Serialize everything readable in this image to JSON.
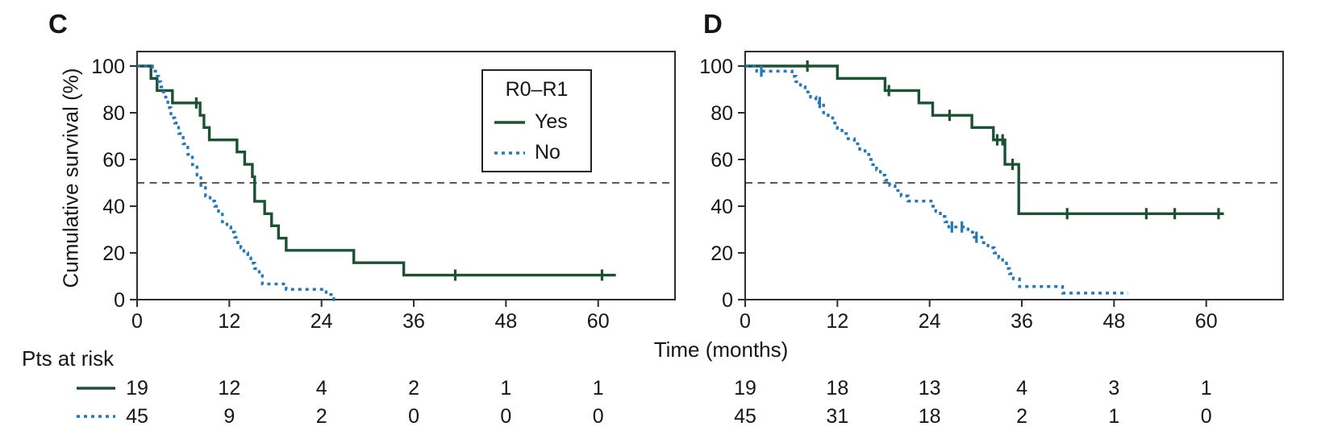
{
  "figure": {
    "ylabel": "Cumulative survival (%)",
    "xlabel": "Time (months)",
    "pts_at_risk_label": "Pts at risk"
  },
  "legend": {
    "title": "R0–R1",
    "entries": [
      {
        "label": "Yes",
        "style": "solid",
        "color": "#1d5134"
      },
      {
        "label": "No",
        "style": "dashed",
        "color": "#2577b5"
      }
    ],
    "position": "upper-right-of-panel-C"
  },
  "colors": {
    "yes_line": "#1d5134",
    "no_line": "#2577b5",
    "frame": "#2d2d2d",
    "text": "#161616",
    "reference_line": "#222222"
  },
  "chart_data": [
    {
      "type": "line",
      "title": "C",
      "xlabel": "Time (months)",
      "ylabel": "Cumulative survival (%)",
      "xlim": [
        0,
        70
      ],
      "ylim": [
        0,
        100
      ],
      "xticks": [
        0,
        12,
        24,
        36,
        48,
        60
      ],
      "yticks": [
        0,
        20,
        40,
        60,
        80,
        100
      ],
      "grid": false,
      "reference_line_y": 50,
      "series": [
        {
          "name": "Yes",
          "style": "solid",
          "color": "#1d5134",
          "steps": [
            [
              0,
              100
            ],
            [
              1.8,
              94.7
            ],
            [
              2.6,
              89.5
            ],
            [
              4.6,
              84.2
            ],
            [
              8.2,
              78.9
            ],
            [
              8.7,
              73.7
            ],
            [
              9.4,
              68.4
            ],
            [
              13.0,
              63.2
            ],
            [
              14.0,
              57.9
            ],
            [
              15.0,
              52.6
            ],
            [
              15.3,
              42.1
            ],
            [
              16.6,
              36.8
            ],
            [
              17.5,
              31.6
            ],
            [
              18.4,
              26.3
            ],
            [
              19.4,
              21.1
            ],
            [
              28.2,
              15.8
            ],
            [
              34.7,
              10.5
            ]
          ],
          "end": 62.3,
          "censors": [
            [
              7.7,
              84.2
            ],
            [
              41.4,
              10.5
            ],
            [
              60.5,
              10.5
            ]
          ]
        },
        {
          "name": "No",
          "style": "dashed",
          "color": "#2577b5",
          "steps": [
            [
              0,
              100
            ],
            [
              2.0,
              97.8
            ],
            [
              2.4,
              95.6
            ],
            [
              2.8,
              93.3
            ],
            [
              3.1,
              91.1
            ],
            [
              3.4,
              88.9
            ],
            [
              3.7,
              86.7
            ],
            [
              4.0,
              82.2
            ],
            [
              4.4,
              77.8
            ],
            [
              4.9,
              75.6
            ],
            [
              5.4,
              71.1
            ],
            [
              6.0,
              66.7
            ],
            [
              6.6,
              62.2
            ],
            [
              7.2,
              57.8
            ],
            [
              7.8,
              53.3
            ],
            [
              8.3,
              48.9
            ],
            [
              8.9,
              44.4
            ],
            [
              9.5,
              42.2
            ],
            [
              10.1,
              40.0
            ],
            [
              10.6,
              37.8
            ],
            [
              11.1,
              33.3
            ],
            [
              11.7,
              31.1
            ],
            [
              12.2,
              28.9
            ],
            [
              12.7,
              26.7
            ],
            [
              13.1,
              24.4
            ],
            [
              13.5,
              22.2
            ],
            [
              13.9,
              20.0
            ],
            [
              14.4,
              17.8
            ],
            [
              14.8,
              15.6
            ],
            [
              15.3,
              13.3
            ],
            [
              15.9,
              11.1
            ],
            [
              16.3,
              6.7
            ],
            [
              19.4,
              4.4
            ],
            [
              24.6,
              2.2
            ],
            [
              25.6,
              0
            ]
          ],
          "end": 25.9,
          "censors": []
        }
      ],
      "pts_at_risk": {
        "times": [
          0,
          12,
          24,
          36,
          48,
          60
        ],
        "rows": [
          {
            "name": "Yes",
            "counts": [
              19,
              12,
              4,
              2,
              1,
              1
            ]
          },
          {
            "name": "No",
            "counts": [
              45,
              9,
              2,
              0,
              0,
              0
            ]
          }
        ]
      }
    },
    {
      "type": "line",
      "title": "D",
      "xlabel": "Time (months)",
      "ylabel": "Cumulative survival (%)",
      "xlim": [
        0,
        70
      ],
      "ylim": [
        0,
        100
      ],
      "xticks": [
        0,
        12,
        24,
        36,
        48,
        60
      ],
      "yticks": [
        0,
        20,
        40,
        60,
        80,
        100
      ],
      "grid": false,
      "reference_line_y": 50,
      "series": [
        {
          "name": "Yes",
          "style": "solid",
          "color": "#1d5134",
          "steps": [
            [
              0,
              100
            ],
            [
              12.0,
              94.7
            ],
            [
              18.2,
              89.5
            ],
            [
              22.6,
              84.2
            ],
            [
              24.4,
              78.9
            ],
            [
              29.5,
              73.7
            ],
            [
              32.3,
              68.4
            ],
            [
              33.8,
              57.9
            ],
            [
              35.6,
              36.8
            ]
          ],
          "end": 62.3,
          "censors": [
            [
              8.1,
              100
            ],
            [
              18.7,
              89.5
            ],
            [
              26.6,
              78.9
            ],
            [
              32.8,
              68.4
            ],
            [
              33.5,
              68.4
            ],
            [
              34.8,
              57.9
            ],
            [
              41.9,
              36.8
            ],
            [
              52.2,
              36.8
            ],
            [
              55.9,
              36.8
            ],
            [
              61.6,
              36.8
            ]
          ]
        },
        {
          "name": "No",
          "style": "dashed",
          "color": "#2577b5",
          "steps": [
            [
              0,
              100
            ],
            [
              1.5,
              97.8
            ],
            [
              6.1,
              95.6
            ],
            [
              6.6,
              93.3
            ],
            [
              7.2,
              91.1
            ],
            [
              7.8,
              88.9
            ],
            [
              8.5,
              86.7
            ],
            [
              9.2,
              84.4
            ],
            [
              10.2,
              80.0
            ],
            [
              10.8,
              77.8
            ],
            [
              11.4,
              75.6
            ],
            [
              12.0,
              73.3
            ],
            [
              12.6,
              71.1
            ],
            [
              13.4,
              68.9
            ],
            [
              14.2,
              66.7
            ],
            [
              14.9,
              64.4
            ],
            [
              15.6,
              62.2
            ],
            [
              16.1,
              60.0
            ],
            [
              16.6,
              57.8
            ],
            [
              17.1,
              55.6
            ],
            [
              17.6,
              53.3
            ],
            [
              18.2,
              51.1
            ],
            [
              18.8,
              48.9
            ],
            [
              19.5,
              46.7
            ],
            [
              20.3,
              44.4
            ],
            [
              21.2,
              42.2
            ],
            [
              24.2,
              40.0
            ],
            [
              24.8,
              37.8
            ],
            [
              25.4,
              35.6
            ],
            [
              26.0,
              33.3
            ],
            [
              26.5,
              31.1
            ],
            [
              29.0,
              28.9
            ],
            [
              29.6,
              26.7
            ],
            [
              30.8,
              24.4
            ],
            [
              31.6,
              22.2
            ],
            [
              32.4,
              20.0
            ],
            [
              33.0,
              17.8
            ],
            [
              33.5,
              15.6
            ],
            [
              34.0,
              13.3
            ],
            [
              34.4,
              11.1
            ],
            [
              34.9,
              8.9
            ],
            [
              35.7,
              5.6
            ],
            [
              41.3,
              2.8
            ]
          ],
          "end": 49.8,
          "censors": [
            [
              2.1,
              97.8
            ],
            [
              9.7,
              84.4
            ],
            [
              26.9,
              31.1
            ],
            [
              28.2,
              31.1
            ],
            [
              30.1,
              26.7
            ]
          ]
        }
      ],
      "pts_at_risk": {
        "times": [
          0,
          12,
          24,
          36,
          48,
          60
        ],
        "rows": [
          {
            "name": "Yes",
            "counts": [
              19,
              18,
              13,
              4,
              3,
              1
            ]
          },
          {
            "name": "No",
            "counts": [
              45,
              31,
              18,
              2,
              1,
              0
            ]
          }
        ]
      }
    }
  ]
}
